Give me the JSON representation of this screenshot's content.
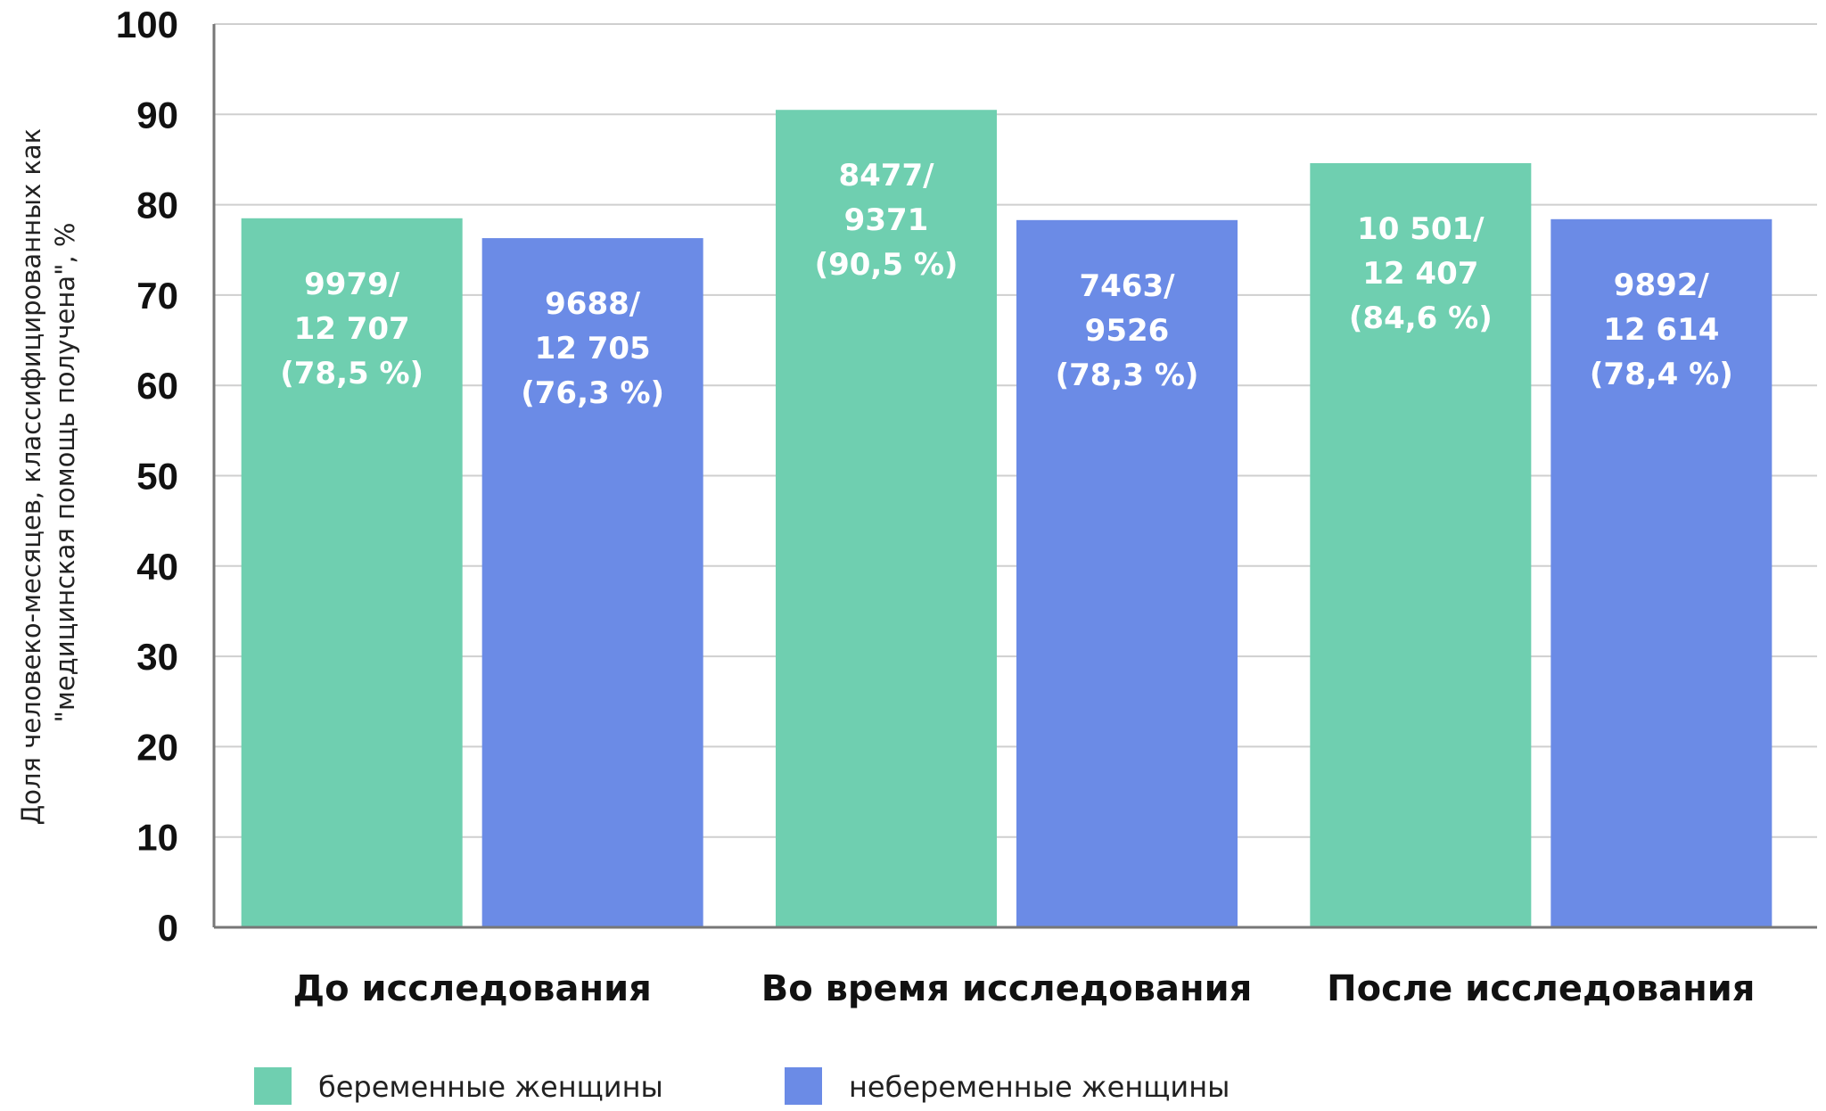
{
  "chart_data": {
    "type": "bar",
    "categories": [
      "До исследования",
      "Во время исследования",
      "После исследования"
    ],
    "ylabel_lines": [
      "Доля человеко-месяцев, классифицированных как",
      "\"медицинская помощь получена\", %"
    ],
    "ylim": [
      0,
      100
    ],
    "yticks": [
      0,
      10,
      20,
      30,
      40,
      50,
      60,
      70,
      80,
      90,
      100
    ],
    "grid": true,
    "legend_position": "bottom-left",
    "series": [
      {
        "name": "беременные женщины",
        "color": "#6fcfb0",
        "values": [
          78.5,
          90.5,
          84.6
        ],
        "labels": [
          [
            "9979/",
            "12 707",
            "(78,5 %)"
          ],
          [
            "8477/",
            "9371",
            "(90,5 %)"
          ],
          [
            "10 501/",
            "12 407",
            "(84,6 %)"
          ]
        ]
      },
      {
        "name": "небеременные женщины",
        "color": "#6b8be6",
        "values": [
          76.3,
          78.3,
          78.4
        ],
        "labels": [
          [
            "9688/",
            "12 705",
            "(76,3 %)"
          ],
          [
            "7463/",
            "9526",
            "(78,3 %)"
          ],
          [
            "9892/",
            "12 614",
            "(78,4 %)"
          ]
        ]
      }
    ]
  }
}
